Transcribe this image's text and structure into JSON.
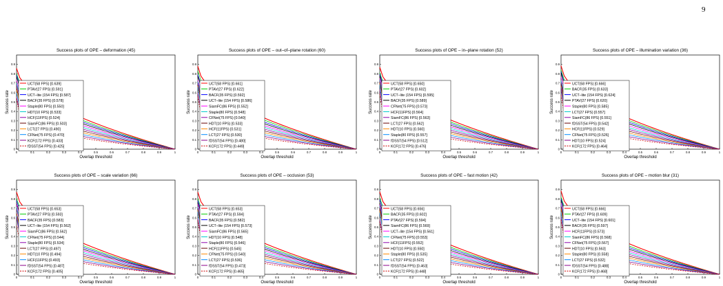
{
  "page": {
    "number": "9"
  },
  "style": {
    "colors": [
      "#ff0000",
      "#00cc00",
      "#0000ff",
      "#000000",
      "#ff00ff",
      "#00cccc",
      "#8800aa",
      "#660000",
      "#ff8800",
      "#0088ff",
      "#880088",
      "#cc0000"
    ]
  },
  "chart_data": [
    {
      "type": "line",
      "title": "Success plots of OPE – deformation (45)",
      "xlabel": "Overlap threshold",
      "ylabel": "Success rate",
      "xlim": [
        0,
        1
      ],
      "ylim": [
        0,
        1
      ],
      "grid": false,
      "legend_position": "bottom-left",
      "x_ticks": [
        "0",
        "0.1",
        "0.2",
        "0.3",
        "0.4",
        "0.5",
        "0.6",
        "0.7",
        "0.8",
        "0.9",
        "1"
      ],
      "y_ticks": [
        "0",
        "0.1",
        "0.2",
        "0.3",
        "0.4",
        "0.5",
        "0.6",
        "0.7",
        "0.8",
        "0.9"
      ],
      "series": [
        {
          "name": "UCT(58 FPS) [0.639]",
          "auc": 0.639,
          "color": "#ff0000"
        },
        {
          "name": "PTAV(27 FPS) [0.591]",
          "auc": 0.591,
          "color": "#00cc00"
        },
        {
          "name": "UCT–lite (154 FPS) [0.587]",
          "auc": 0.587,
          "color": "#0000ff"
        },
        {
          "name": "BACF(35 FPS) [0.578]",
          "auc": 0.578,
          "color": "#000000"
        },
        {
          "name": "Staple(80 FPS) [0.550]",
          "auc": 0.55,
          "color": "#ff00ff"
        },
        {
          "name": "HDT(10 FPS) [0.533]",
          "auc": 0.533,
          "color": "#00cccc"
        },
        {
          "name": "HCF(11FPS) [0.524]",
          "auc": 0.524,
          "color": "#8800aa"
        },
        {
          "name": "SiamFC(86 FPS) [0.503]",
          "auc": 0.503,
          "color": "#660000"
        },
        {
          "name": "LCT(27 FPS) [0.490]",
          "auc": 0.49,
          "color": "#ff8800"
        },
        {
          "name": "CFNet(75 FPS) [0.470]",
          "auc": 0.47,
          "color": "#0088ff"
        },
        {
          "name": "KCF(172 FPS) [0.433]",
          "auc": 0.433,
          "color": "#880088"
        },
        {
          "name": "fDSST(54 FPS) [0.425]",
          "auc": 0.425,
          "color": "#cc0000",
          "dashed": true
        }
      ]
    },
    {
      "type": "line",
      "title": "Success plots of OPE – out–of–plane rotation (60)",
      "xlabel": "Overlap threshold",
      "ylabel": "Success rate",
      "xlim": [
        0,
        1
      ],
      "ylim": [
        0,
        1
      ],
      "grid": false,
      "legend_position": "bottom-left",
      "x_ticks": [
        "0",
        "0.1",
        "0.2",
        "0.3",
        "0.4",
        "0.5",
        "0.6",
        "0.7",
        "0.8",
        "0.9",
        "1"
      ],
      "y_ticks": [
        "0",
        "0.1",
        "0.2",
        "0.3",
        "0.4",
        "0.5",
        "0.6",
        "0.7",
        "0.8",
        "0.9"
      ],
      "series": [
        {
          "name": "UCT(58 FPS) [0.661]",
          "auc": 0.661,
          "color": "#ff0000"
        },
        {
          "name": "PTAV(27 FPS) [0.622]",
          "auc": 0.622,
          "color": "#00cc00"
        },
        {
          "name": "BACF(35 FPS) [0.592]",
          "auc": 0.592,
          "color": "#0000ff"
        },
        {
          "name": "UCT–lite (154 FPS) [0.586]",
          "auc": 0.586,
          "color": "#000000"
        },
        {
          "name": "SiamFC(86 FPS) [0.552]",
          "auc": 0.552,
          "color": "#ff00ff"
        },
        {
          "name": "Staple(80 FPS) [0.548]",
          "auc": 0.548,
          "color": "#00cccc"
        },
        {
          "name": "CFNet(75 FPS) [0.540]",
          "auc": 0.54,
          "color": "#8800aa"
        },
        {
          "name": "HDT(10 FPS) [0.533]",
          "auc": 0.533,
          "color": "#660000"
        },
        {
          "name": "HCF(11FPS) [0.531]",
          "auc": 0.531,
          "color": "#ff8800"
        },
        {
          "name": "LCT(27 FPS) [0.530]",
          "auc": 0.53,
          "color": "#0088ff"
        },
        {
          "name": "fDSST(54 FPS) [0.480]",
          "auc": 0.48,
          "color": "#880088"
        },
        {
          "name": "KCF(172 FPS) [0.449]",
          "auc": 0.449,
          "color": "#cc0000",
          "dashed": true
        }
      ]
    },
    {
      "type": "line",
      "title": "Success plots of OPE – in–plane rotation (52)",
      "xlabel": "Overlap threshold",
      "ylabel": "Success rate",
      "xlim": [
        0,
        1
      ],
      "ylim": [
        0,
        1
      ],
      "grid": false,
      "legend_position": "bottom-left",
      "x_ticks": [
        "0",
        "0.1",
        "0.2",
        "0.3",
        "0.4",
        "0.5",
        "0.6",
        "0.7",
        "0.8",
        "0.9",
        "1"
      ],
      "y_ticks": [
        "0",
        "0.1",
        "0.2",
        "0.3",
        "0.4",
        "0.5",
        "0.6",
        "0.7",
        "0.8",
        "0.9"
      ],
      "series": [
        {
          "name": "UCT(58 FPS) [0.650]",
          "auc": 0.65,
          "color": "#ff0000"
        },
        {
          "name": "PTAV(27 FPS) [0.602]",
          "auc": 0.602,
          "color": "#00cc00"
        },
        {
          "name": "UCT–lite (154 FPS) [0.595]",
          "auc": 0.595,
          "color": "#0000ff"
        },
        {
          "name": "BACF(35 FPS) [0.589]",
          "auc": 0.589,
          "color": "#000000"
        },
        {
          "name": "CFNet(75 FPS) [0.573]",
          "auc": 0.573,
          "color": "#ff00ff"
        },
        {
          "name": "HCF(11FPS) [0.564]",
          "auc": 0.564,
          "color": "#00cccc"
        },
        {
          "name": "SiamFC(86 FPS) [0.563]",
          "auc": 0.563,
          "color": "#8800aa"
        },
        {
          "name": "LCT(27 FPS) [0.562]",
          "auc": 0.562,
          "color": "#660000"
        },
        {
          "name": "HDT(10 FPS) [0.560]",
          "auc": 0.56,
          "color": "#ff8800"
        },
        {
          "name": "Staple(80 FPS) [0.557]",
          "auc": 0.557,
          "color": "#0088ff"
        },
        {
          "name": "fDSST(54 FPS) [0.512]",
          "auc": 0.512,
          "color": "#880088"
        },
        {
          "name": "KCF(172 FPS) [0.476]",
          "auc": 0.476,
          "color": "#cc0000",
          "dashed": true
        }
      ]
    },
    {
      "type": "line",
      "title": "Success plots of OPE – illumination variation (36)",
      "xlabel": "Overlap threshold",
      "ylabel": "Success rate",
      "xlim": [
        0,
        1
      ],
      "ylim": [
        0,
        1
      ],
      "grid": false,
      "legend_position": "bottom-left",
      "x_ticks": [
        "0",
        "0.1",
        "0.2",
        "0.3",
        "0.4",
        "0.5",
        "0.6",
        "0.7",
        "0.8",
        "0.9",
        "1"
      ],
      "y_ticks": [
        "0",
        "0.1",
        "0.2",
        "0.3",
        "0.4",
        "0.5",
        "0.6",
        "0.7",
        "0.8",
        "0.9"
      ],
      "series": [
        {
          "name": "UCT(58 FPS) [0.666]",
          "auc": 0.666,
          "color": "#ff0000"
        },
        {
          "name": "BACF(35 FPS) [0.633]",
          "auc": 0.633,
          "color": "#00cc00"
        },
        {
          "name": "UCT–lite (154 FPS) [0.624]",
          "auc": 0.624,
          "color": "#0000ff"
        },
        {
          "name": "PTAV(27 FPS) [0.620]",
          "auc": 0.62,
          "color": "#000000"
        },
        {
          "name": "Staple(80 FPS) [0.585]",
          "auc": 0.585,
          "color": "#ff00ff"
        },
        {
          "name": "LCT(27 FPS) [0.557]",
          "auc": 0.557,
          "color": "#00cccc"
        },
        {
          "name": "SiamFC(86 FPS) [0.551]",
          "auc": 0.551,
          "color": "#8800aa"
        },
        {
          "name": "fDSST(54 FPS) [0.542]",
          "auc": 0.542,
          "color": "#660000"
        },
        {
          "name": "HCF(11FPS) [0.529]",
          "auc": 0.529,
          "color": "#ff8800"
        },
        {
          "name": "CFNet(75 FPS) [0.526]",
          "auc": 0.526,
          "color": "#0088ff"
        },
        {
          "name": "HDT(10 FPS) [0.524]",
          "auc": 0.524,
          "color": "#880088"
        },
        {
          "name": "KCF(172 FPS) [0.464]",
          "auc": 0.464,
          "color": "#cc0000",
          "dashed": true
        }
      ]
    },
    {
      "type": "line",
      "title": "Success plots of OPE – scale variation (66)",
      "xlabel": "Overlap threshold",
      "ylabel": "Success rate",
      "xlim": [
        0,
        1
      ],
      "ylim": [
        0,
        1
      ],
      "grid": false,
      "legend_position": "bottom-left",
      "x_ticks": [
        "0",
        "0.1",
        "0.2",
        "0.3",
        "0.4",
        "0.5",
        "0.6",
        "0.7",
        "0.8",
        "0.9",
        "1"
      ],
      "y_ticks": [
        "0",
        "0.1",
        "0.2",
        "0.3",
        "0.4",
        "0.5",
        "0.6",
        "0.7",
        "0.8",
        "0.9"
      ],
      "series": [
        {
          "name": "UCT(58 FPS) [0.653]",
          "auc": 0.653,
          "color": "#ff0000"
        },
        {
          "name": "PTAV(27 FPS) [0.593]",
          "auc": 0.593,
          "color": "#00cc00"
        },
        {
          "name": "BACF(35 FPS) [0.583]",
          "auc": 0.583,
          "color": "#0000ff"
        },
        {
          "name": "UCT–lite (154 FPS) [0.562]",
          "auc": 0.562,
          "color": "#000000"
        },
        {
          "name": "SiamFC(86 FPS) [0.562]",
          "auc": 0.562,
          "color": "#ff00ff"
        },
        {
          "name": "CFNet(75 FPS) [0.544]",
          "auc": 0.544,
          "color": "#00cccc"
        },
        {
          "name": "Staple(80 FPS) [0.534]",
          "auc": 0.534,
          "color": "#8800aa"
        },
        {
          "name": "LCT(27 FPS) [0.497]",
          "auc": 0.497,
          "color": "#660000"
        },
        {
          "name": "HDT(10 FPS) [0.494]",
          "auc": 0.494,
          "color": "#ff8800"
        },
        {
          "name": "HCF(11FPS) [0.493]",
          "auc": 0.493,
          "color": "#0088ff"
        },
        {
          "name": "fDSST(54 FPS) [0.487]",
          "auc": 0.487,
          "color": "#880088"
        },
        {
          "name": "KCF(172 FPS) [0.405]",
          "auc": 0.405,
          "color": "#cc0000",
          "dashed": true
        }
      ]
    },
    {
      "type": "line",
      "title": "Success plots of OPE – occlusion (53)",
      "xlabel": "Overlap threshold",
      "ylabel": "Success rate",
      "xlim": [
        0,
        1
      ],
      "ylim": [
        0,
        1
      ],
      "grid": false,
      "legend_position": "bottom-left",
      "x_ticks": [
        "0",
        "0.1",
        "0.2",
        "0.3",
        "0.4",
        "0.5",
        "0.6",
        "0.7",
        "0.8",
        "0.9",
        "1"
      ],
      "y_ticks": [
        "0",
        "0.1",
        "0.2",
        "0.3",
        "0.4",
        "0.5",
        "0.6",
        "0.7",
        "0.8",
        "0.9"
      ],
      "series": [
        {
          "name": "UCT(58 FPS) [0.653]",
          "auc": 0.653,
          "color": "#ff0000"
        },
        {
          "name": "PTAV(27 FPS) [0.594]",
          "auc": 0.594,
          "color": "#00cc00"
        },
        {
          "name": "BACF(35 FPS) [0.582]",
          "auc": 0.582,
          "color": "#0000ff"
        },
        {
          "name": "UCT–lite (154 FPS) [0.573]",
          "auc": 0.573,
          "color": "#000000"
        },
        {
          "name": "SiamFC(86 FPS) [0.565]",
          "auc": 0.565,
          "color": "#ff00ff"
        },
        {
          "name": "HDT(10 FPS) [0.548]",
          "auc": 0.548,
          "color": "#00cccc"
        },
        {
          "name": "Staple(80 FPS) [0.546]",
          "auc": 0.546,
          "color": "#8800aa"
        },
        {
          "name": "HCF(11FPS) [0.545]",
          "auc": 0.545,
          "color": "#660000"
        },
        {
          "name": "CFNet(75 FPS) [0.540]",
          "auc": 0.54,
          "color": "#ff8800"
        },
        {
          "name": "LCT(27 FPS) [0.536]",
          "auc": 0.536,
          "color": "#0088ff"
        },
        {
          "name": "fDSST(54 FPS) [0.473]",
          "auc": 0.473,
          "color": "#880088"
        },
        {
          "name": "KCF(172 FPS) [0.465]",
          "auc": 0.465,
          "color": "#cc0000",
          "dashed": true
        }
      ]
    },
    {
      "type": "line",
      "title": "Success plots of OPE – fast motion (42)",
      "xlabel": "Overlap threshold",
      "ylabel": "Success rate",
      "xlim": [
        0,
        1
      ],
      "ylim": [
        0,
        1
      ],
      "grid": false,
      "legend_position": "bottom-left",
      "x_ticks": [
        "0",
        "0.1",
        "0.2",
        "0.3",
        "0.4",
        "0.5",
        "0.6",
        "0.7",
        "0.8",
        "0.9",
        "1"
      ],
      "y_ticks": [
        "0",
        "0.1",
        "0.2",
        "0.3",
        "0.4",
        "0.5",
        "0.6",
        "0.7",
        "0.8",
        "0.9"
      ],
      "series": [
        {
          "name": "UCT(58 FPS) [0.656]",
          "auc": 0.656,
          "color": "#ff0000"
        },
        {
          "name": "BACF(35 FPS) [0.602]",
          "auc": 0.602,
          "color": "#00cc00"
        },
        {
          "name": "PTAV(27 FPS) [0.594]",
          "auc": 0.594,
          "color": "#0000ff"
        },
        {
          "name": "SiamFC(86 FPS) [0.569]",
          "auc": 0.569,
          "color": "#000000"
        },
        {
          "name": "UCT–lite (154 FPS) [0.561]",
          "auc": 0.561,
          "color": "#ff00ff"
        },
        {
          "name": "CFNet(75 FPS) [0.553]",
          "auc": 0.553,
          "color": "#00cccc"
        },
        {
          "name": "HCF(11FPS) [0.552]",
          "auc": 0.552,
          "color": "#8800aa"
        },
        {
          "name": "HDT(10 FPS) [0.550]",
          "auc": 0.55,
          "color": "#660000"
        },
        {
          "name": "Staple(80 FPS) [0.535]",
          "auc": 0.535,
          "color": "#ff8800"
        },
        {
          "name": "LCT(27 FPS) [0.522]",
          "auc": 0.522,
          "color": "#0088ff"
        },
        {
          "name": "fDSST(54 FPS) [0.463]",
          "auc": 0.463,
          "color": "#880088"
        },
        {
          "name": "KCF(172 FPS) [0.448]",
          "auc": 0.448,
          "color": "#cc0000",
          "dashed": true
        }
      ]
    },
    {
      "type": "line",
      "title": "Success plots of OPE – motion blur (31)",
      "xlabel": "Overlap threshold",
      "ylabel": "Success rate",
      "xlim": [
        0,
        1
      ],
      "ylim": [
        0,
        1
      ],
      "grid": false,
      "legend_position": "bottom-left",
      "x_ticks": [
        "0",
        "0.1",
        "0.2",
        "0.3",
        "0.4",
        "0.5",
        "0.6",
        "0.7",
        "0.8",
        "0.9",
        "1"
      ],
      "y_ticks": [
        "0",
        "0.1",
        "0.2",
        "0.3",
        "0.4",
        "0.5",
        "0.6",
        "0.7",
        "0.8",
        "0.9"
      ],
      "series": [
        {
          "name": "UCT(58 FPS) [0.666]",
          "auc": 0.666,
          "color": "#ff0000"
        },
        {
          "name": "PTAV(27 FPS) [0.609]",
          "auc": 0.609,
          "color": "#00cc00"
        },
        {
          "name": "UCT–lite (154 FPS) [0.601]",
          "auc": 0.601,
          "color": "#0000ff"
        },
        {
          "name": "BACF(35 FPS) [0.597]",
          "auc": 0.597,
          "color": "#000000"
        },
        {
          "name": "HCF(11FPS) [0.573]",
          "auc": 0.573,
          "color": "#ff00ff"
        },
        {
          "name": "SiamFC(86 FPS) [0.568]",
          "auc": 0.568,
          "color": "#00cccc"
        },
        {
          "name": "CFNet(75 FPS) [0.567]",
          "auc": 0.567,
          "color": "#8800aa"
        },
        {
          "name": "HDT(10 FPS) [0.563]",
          "auc": 0.563,
          "color": "#660000"
        },
        {
          "name": "Staple(80 FPS) [0.558]",
          "auc": 0.558,
          "color": "#ff8800"
        },
        {
          "name": "LCT(27 FPS) [0.532]",
          "auc": 0.532,
          "color": "#0088ff"
        },
        {
          "name": "fDSST(54 FPS) [0.488]",
          "auc": 0.488,
          "color": "#880088"
        },
        {
          "name": "KCF(172 FPS) [0.468]",
          "auc": 0.468,
          "color": "#cc0000",
          "dashed": true
        }
      ]
    }
  ]
}
